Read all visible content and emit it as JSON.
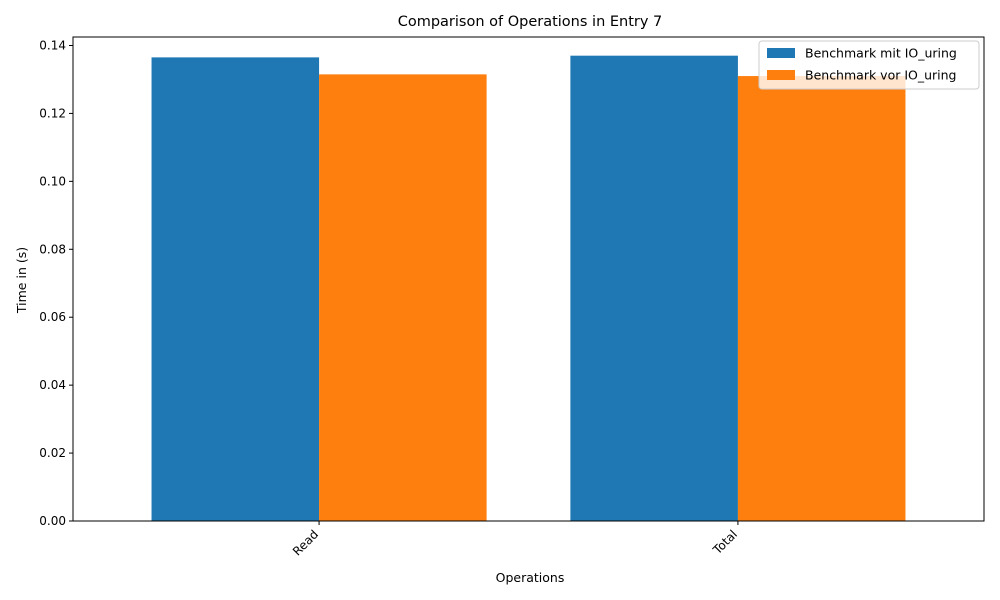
{
  "chart_data": {
    "type": "bar",
    "title": "Comparison of Operations in Entry 7",
    "xlabel": "Operations",
    "ylabel": "Time in (s)",
    "categories": [
      "Read",
      "Total"
    ],
    "series": [
      {
        "name": "Benchmark mit IO_uring",
        "values": [
          0.1365,
          0.137
        ],
        "color": "#1f77b4"
      },
      {
        "name": "Benchmark vor IO_uring",
        "values": [
          0.1315,
          0.131
        ],
        "color": "#ff7f0e"
      }
    ],
    "ylim": [
      0,
      0.1425
    ],
    "yticks": [
      0.0,
      0.02,
      0.04,
      0.06,
      0.08,
      0.1,
      0.12,
      0.14
    ],
    "ytick_labels": [
      "0.00",
      "0.02",
      "0.04",
      "0.06",
      "0.08",
      "0.10",
      "0.12",
      "0.14"
    ],
    "grid": false,
    "legend_position": "top-right",
    "xtick_rotation_deg": 45
  }
}
